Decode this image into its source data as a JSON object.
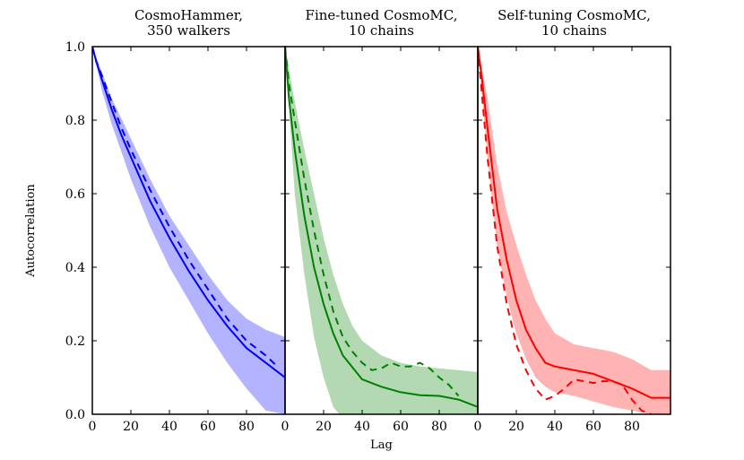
{
  "chart_data": {
    "type": "line",
    "xlabel": "Lag",
    "ylabel": "Autocorrelation",
    "ylim": [
      0.0,
      1.0
    ],
    "y_ticks": [
      "0.0",
      "0.2",
      "0.4",
      "0.6",
      "0.8",
      "1.0"
    ],
    "panels": [
      {
        "title_lines": [
          "CosmoHammer,",
          "350 walkers"
        ],
        "color": "#0000ff",
        "band_color": "#b3b3ff",
        "xlim": [
          0,
          100
        ],
        "x_ticks": [
          "0",
          "20",
          "40",
          "60",
          "80"
        ],
        "series": [
          {
            "name": "mean",
            "style": "solid",
            "x": [
              0,
              2,
              5,
              10,
              15,
              20,
              30,
              40,
              50,
              60,
              70,
              80,
              90,
              100
            ],
            "y": [
              1.0,
              0.96,
              0.91,
              0.83,
              0.76,
              0.7,
              0.58,
              0.48,
              0.39,
              0.31,
              0.24,
              0.18,
              0.14,
              0.1
            ]
          },
          {
            "name": "dashed",
            "style": "dashed",
            "x": [
              0,
              2,
              5,
              10,
              15,
              20,
              30,
              40,
              50,
              60,
              70,
              80,
              90,
              96
            ],
            "y": [
              1.0,
              0.96,
              0.92,
              0.85,
              0.78,
              0.72,
              0.61,
              0.51,
              0.42,
              0.34,
              0.26,
              0.2,
              0.16,
              0.13
            ]
          },
          {
            "name": "band_upper",
            "style": "band_upper",
            "x": [
              0,
              5,
              10,
              20,
              30,
              40,
              50,
              60,
              70,
              80,
              90,
              100
            ],
            "y": [
              1.0,
              0.93,
              0.86,
              0.75,
              0.64,
              0.54,
              0.46,
              0.38,
              0.31,
              0.26,
              0.23,
              0.21
            ]
          },
          {
            "name": "band_lower",
            "style": "band_lower",
            "x": [
              0,
              5,
              10,
              20,
              30,
              40,
              50,
              60,
              70,
              80,
              90,
              100
            ],
            "y": [
              1.0,
              0.88,
              0.79,
              0.64,
              0.51,
              0.4,
              0.31,
              0.22,
              0.14,
              0.07,
              0.01,
              0.0
            ]
          }
        ]
      },
      {
        "title_lines": [
          "Fine-tuned CosmoMC,",
          "10 chains"
        ],
        "color": "#008000",
        "band_color": "#b3d9b3",
        "xlim": [
          0,
          100
        ],
        "x_ticks": [
          "0",
          "20",
          "40",
          "60",
          "80"
        ],
        "series": [
          {
            "name": "mean",
            "style": "solid",
            "x": [
              0,
              2,
              5,
              10,
              15,
              20,
              25,
              30,
              40,
              50,
              60,
              70,
              80,
              90,
              100
            ],
            "y": [
              1.0,
              0.86,
              0.72,
              0.54,
              0.4,
              0.3,
              0.22,
              0.16,
              0.095,
              0.075,
              0.06,
              0.052,
              0.05,
              0.04,
              0.02
            ]
          },
          {
            "name": "dashed",
            "style": "dashed",
            "x": [
              0,
              2,
              5,
              10,
              15,
              20,
              25,
              30,
              35,
              40,
              45,
              50,
              55,
              60,
              65,
              70,
              75,
              80,
              85,
              90
            ],
            "y": [
              1.0,
              0.9,
              0.8,
              0.64,
              0.5,
              0.38,
              0.28,
              0.21,
              0.17,
              0.14,
              0.12,
              0.125,
              0.14,
              0.13,
              0.13,
              0.14,
              0.125,
              0.1,
              0.08,
              0.05
            ]
          },
          {
            "name": "band_upper",
            "style": "band_upper",
            "x": [
              0,
              5,
              10,
              15,
              20,
              25,
              30,
              35,
              40,
              50,
              60,
              70,
              80,
              90,
              100
            ],
            "y": [
              1.0,
              0.85,
              0.72,
              0.6,
              0.48,
              0.38,
              0.3,
              0.24,
              0.2,
              0.16,
              0.14,
              0.13,
              0.125,
              0.12,
              0.115
            ]
          },
          {
            "name": "band_lower",
            "style": "band_lower",
            "x": [
              0,
              5,
              10,
              15,
              20,
              25,
              28,
              100
            ],
            "y": [
              1.0,
              0.6,
              0.38,
              0.21,
              0.1,
              0.02,
              0.0,
              0.0
            ]
          }
        ]
      },
      {
        "title_lines": [
          "Self-tuning CosmoMC,",
          "10 chains"
        ],
        "color": "#ff0000",
        "band_color": "#ffb3b3",
        "xlim": [
          0,
          100
        ],
        "x_ticks": [
          "0",
          "20",
          "40",
          "60",
          "80"
        ],
        "series": [
          {
            "name": "mean",
            "style": "solid",
            "x": [
              0,
              2,
              5,
              10,
              15,
              20,
              25,
              30,
              35,
              40,
              50,
              60,
              70,
              80,
              90,
              95,
              100
            ],
            "y": [
              1.0,
              0.92,
              0.78,
              0.56,
              0.42,
              0.31,
              0.23,
              0.18,
              0.14,
              0.13,
              0.12,
              0.11,
              0.09,
              0.07,
              0.045,
              0.045,
              0.045
            ]
          },
          {
            "name": "dashed",
            "style": "dashed",
            "x": [
              0,
              2,
              5,
              10,
              15,
              20,
              25,
              30,
              35,
              40,
              45,
              50,
              55,
              60,
              65,
              70,
              75,
              80,
              85,
              90
            ],
            "y": [
              1.0,
              0.88,
              0.7,
              0.46,
              0.3,
              0.19,
              0.12,
              0.07,
              0.04,
              0.05,
              0.07,
              0.095,
              0.09,
              0.085,
              0.09,
              0.09,
              0.08,
              0.04,
              0.01,
              0.0
            ]
          },
          {
            "name": "band_upper",
            "style": "band_upper",
            "x": [
              0,
              5,
              10,
              15,
              20,
              25,
              30,
              35,
              40,
              50,
              60,
              70,
              80,
              90,
              100
            ],
            "y": [
              1.0,
              0.86,
              0.68,
              0.55,
              0.46,
              0.38,
              0.31,
              0.26,
              0.22,
              0.19,
              0.18,
              0.17,
              0.15,
              0.12,
              0.12
            ]
          },
          {
            "name": "band_lower",
            "style": "band_lower",
            "x": [
              0,
              5,
              10,
              15,
              20,
              25,
              30,
              35,
              40,
              50,
              60,
              70,
              80,
              90,
              100
            ],
            "y": [
              1.0,
              0.7,
              0.46,
              0.32,
              0.22,
              0.15,
              0.1,
              0.075,
              0.06,
              0.05,
              0.035,
              0.02,
              0.01,
              0.0,
              0.0
            ]
          }
        ]
      }
    ]
  }
}
